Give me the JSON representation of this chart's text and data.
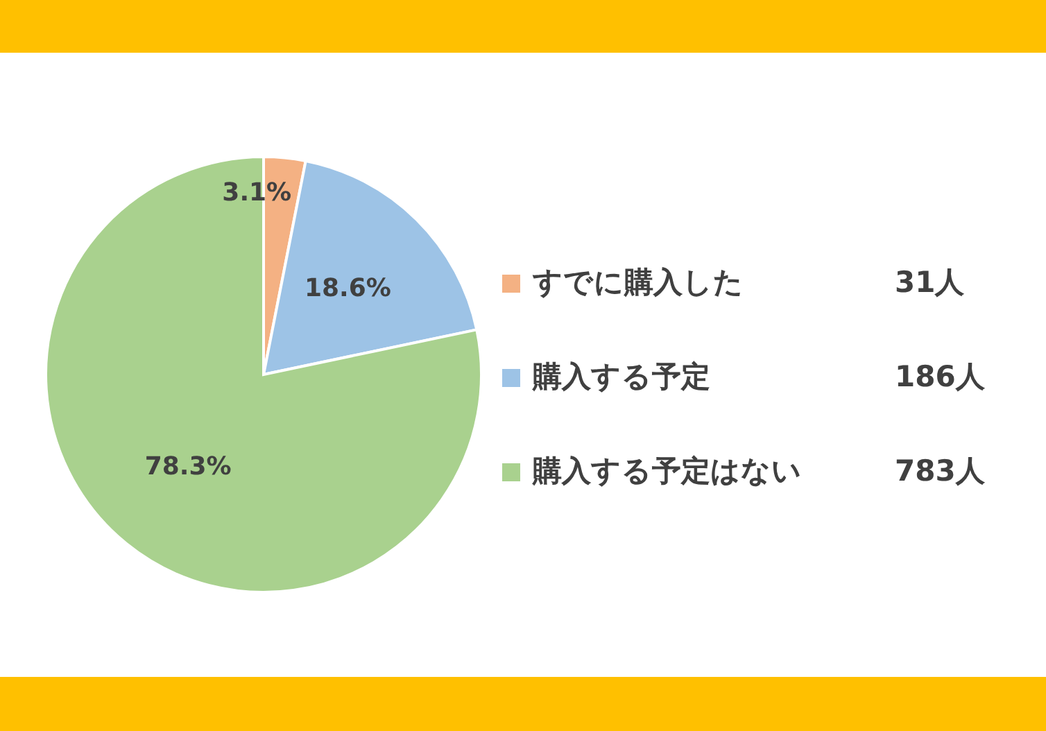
{
  "chart_data": {
    "type": "pie",
    "categories": [
      "すでに購入した",
      "購入する予定",
      "購入する予定はない"
    ],
    "values": [
      3.1,
      18.6,
      78.3
    ],
    "colors": [
      "#f4b183",
      "#9dc3e6",
      "#a9d18e"
    ],
    "value_labels": [
      "3.1%",
      "18.6%",
      "78.3%"
    ],
    "annotations": [
      "31人",
      "186人",
      "783人"
    ],
    "legend": "right"
  }
}
